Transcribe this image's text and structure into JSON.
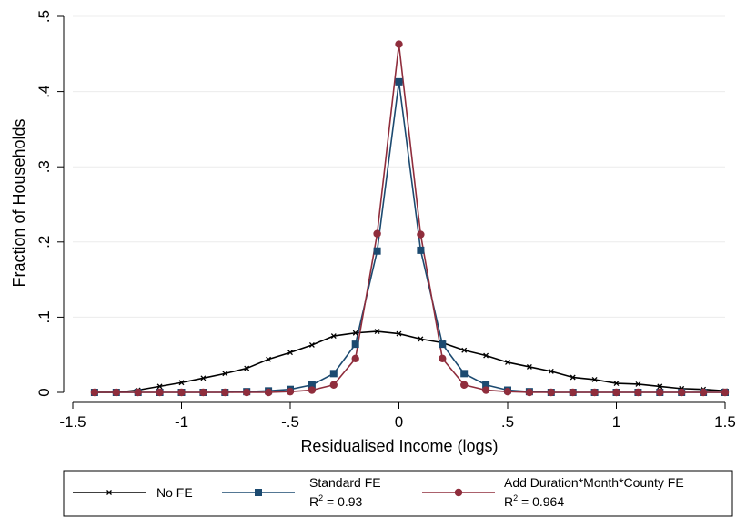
{
  "chart_data": {
    "type": "line",
    "title": "",
    "xlabel": "Residualised Income (logs)",
    "ylabel": "Fraction of Households",
    "xlim": [
      -1.4,
      1.5
    ],
    "ylim": [
      0,
      0.5
    ],
    "x_ticks": [
      {
        "value": -1.5,
        "label": "-1.5"
      },
      {
        "value": -1,
        "label": "-1"
      },
      {
        "value": -0.5,
        "label": "-.5"
      },
      {
        "value": 0,
        "label": "0"
      },
      {
        "value": 0.5,
        "label": ".5"
      },
      {
        "value": 1,
        "label": "1"
      },
      {
        "value": 1.5,
        "label": "1.5"
      }
    ],
    "y_ticks": [
      {
        "value": 0,
        "label": "0"
      },
      {
        "value": 0.1,
        "label": ".1"
      },
      {
        "value": 0.2,
        "label": ".2"
      },
      {
        "value": 0.3,
        "label": ".3"
      },
      {
        "value": 0.4,
        "label": ".4"
      },
      {
        "value": 0.5,
        "label": ".5"
      }
    ],
    "grid": "horizontal",
    "legend_position": "bottom",
    "x": [
      -1.4,
      -1.3,
      -1.2,
      -1.1,
      -1.0,
      -0.9,
      -0.8,
      -0.7,
      -0.6,
      -0.5,
      -0.4,
      -0.3,
      -0.2,
      -0.1,
      0.0,
      0.1,
      0.2,
      0.3,
      0.4,
      0.5,
      0.6,
      0.7,
      0.8,
      0.9,
      1.0,
      1.1,
      1.2,
      1.3,
      1.4,
      1.5
    ],
    "series": [
      {
        "name": "No FE",
        "name_line2": "",
        "color": "#000000",
        "marker": "x",
        "values": [
          0.0,
          0.0,
          0.003,
          0.008,
          0.013,
          0.019,
          0.025,
          0.032,
          0.044,
          0.053,
          0.063,
          0.075,
          0.079,
          0.081,
          0.078,
          0.071,
          0.066,
          0.056,
          0.049,
          0.04,
          0.034,
          0.028,
          0.02,
          0.017,
          0.012,
          0.011,
          0.008,
          0.005,
          0.004,
          0.002
        ]
      },
      {
        "name": "Standard FE",
        "name_line2_prefix": "R",
        "name_line2_sup": "2",
        "name_line2_suffix": " = 0.93",
        "color": "#1c4a70",
        "marker": "square",
        "values": [
          0.0,
          0.0,
          0.0,
          0.0,
          0.0,
          0.0,
          0.0,
          0.001,
          0.002,
          0.004,
          0.01,
          0.025,
          0.064,
          0.188,
          0.413,
          0.189,
          0.064,
          0.025,
          0.01,
          0.003,
          0.001,
          0.0,
          0.0,
          0.0,
          0.0,
          0.0,
          0.0,
          0.0,
          0.0,
          0.0
        ]
      },
      {
        "name": "Add Duration*Month*County FE",
        "name_line2_prefix": "R",
        "name_line2_sup": "2",
        "name_line2_suffix": " = 0.964",
        "color": "#8f2d3c",
        "marker": "circle",
        "values": [
          0.0,
          0.0,
          0.0,
          0.0,
          0.0,
          0.0,
          0.0,
          0.0,
          0.0,
          0.001,
          0.003,
          0.01,
          0.045,
          0.211,
          0.463,
          0.21,
          0.045,
          0.01,
          0.003,
          0.001,
          0.0,
          0.0,
          0.0,
          0.0,
          0.0,
          0.0,
          0.0,
          0.0,
          0.0,
          0.0
        ]
      }
    ]
  }
}
